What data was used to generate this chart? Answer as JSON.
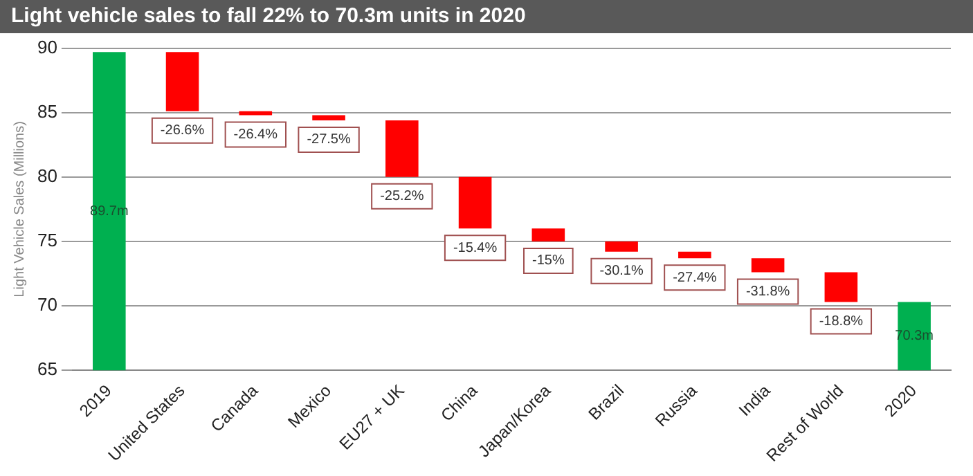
{
  "chart_data": {
    "type": "bar",
    "title": "Light vehicle sales to fall 22% to 70.3m units in 2020",
    "ylabel": "Light Vehicle Sales (Millions)",
    "categories": [
      "2019",
      "United States",
      "Canada",
      "Mexico",
      "EU27 + UK",
      "China",
      "Japan/Korea",
      "Brazil",
      "Russia",
      "India",
      "Rest of World",
      "2020"
    ],
    "base": [
      0,
      89.7,
      85.1,
      84.8,
      84.4,
      80.0,
      76.0,
      75.0,
      74.2,
      73.7,
      72.6,
      0
    ],
    "values": [
      89.7,
      -4.6,
      -0.3,
      -0.4,
      -4.4,
      -4.0,
      -1.0,
      -0.8,
      -0.5,
      -1.1,
      -2.3,
      70.3
    ],
    "colors": [
      "#00b050",
      "#ff0000",
      "#ff0000",
      "#ff0000",
      "#ff0000",
      "#ff0000",
      "#ff0000",
      "#ff0000",
      "#ff0000",
      "#ff0000",
      "#ff0000",
      "#00b050"
    ],
    "value_labels": [
      "89.7m",
      null,
      null,
      null,
      null,
      null,
      null,
      null,
      null,
      null,
      null,
      "70.3m"
    ],
    "annotations": [
      {
        "text": "-26.6%",
        "x": "United States",
        "y": 85.1
      },
      {
        "text": "-26.4%",
        "x": "Canada",
        "y": 84.8
      },
      {
        "text": "-27.5%",
        "x": "Mexico",
        "y": 84.4
      },
      {
        "text": "-25.2%",
        "x": "EU27 + UK",
        "y": 80.0
      },
      {
        "text": "-15.4%",
        "x": "China",
        "y": 76.0
      },
      {
        "text": "-15%",
        "x": "Japan/Korea",
        "y": 75.0
      },
      {
        "text": "-30.1%",
        "x": "Brazil",
        "y": 74.2
      },
      {
        "text": "-27.4%",
        "x": "Russia",
        "y": 73.7
      },
      {
        "text": "-31.8%",
        "x": "India",
        "y": 72.6
      },
      {
        "text": "-18.8%",
        "x": "Rest of World",
        "y": 70.3
      }
    ],
    "ylim": [
      65,
      90
    ],
    "yticks": [
      65,
      70,
      75,
      80,
      85,
      90
    ],
    "grid": "y",
    "legend": false
  }
}
